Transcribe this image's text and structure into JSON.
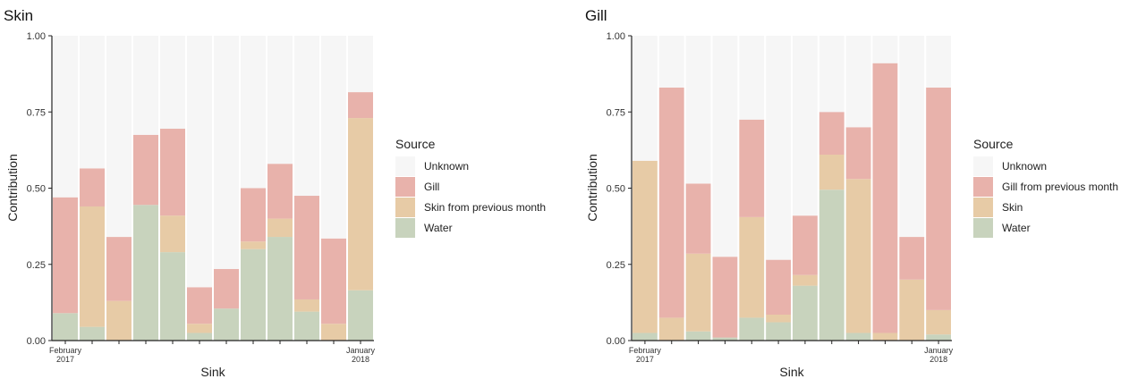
{
  "colors": {
    "unknown": "#f6f6f6",
    "gill": "#e8b2ab",
    "skin": "#e7cba6",
    "water": "#c8d3bd",
    "axis": "#222222"
  },
  "chart_data": [
    {
      "type": "bar",
      "stacked": true,
      "title": "Skin",
      "xlabel": "Sink",
      "ylabel": "Contribution",
      "ylim": [
        0,
        1
      ],
      "yticks": [
        "0.00",
        "0.25",
        "0.50",
        "0.75",
        "1.00"
      ],
      "x_tick_labels": [
        {
          "index": 0,
          "lines": [
            "February",
            "2017"
          ]
        },
        {
          "index": 11,
          "lines": [
            "January",
            "2018"
          ]
        }
      ],
      "legend": {
        "title": "Source",
        "position": "right",
        "entries": [
          {
            "label": "Unknown",
            "color_key": "unknown"
          },
          {
            "label": "Gill",
            "color_key": "gill"
          },
          {
            "label": "Skin from previous month",
            "color_key": "skin"
          },
          {
            "label": "Water",
            "color_key": "water"
          }
        ]
      },
      "series": [
        {
          "name": "Water",
          "color_key": "water",
          "values": [
            0.09,
            0.045,
            0.0,
            0.445,
            0.29,
            0.025,
            0.105,
            0.3,
            0.34,
            0.095,
            0.0,
            0.165
          ]
        },
        {
          "name": "Skin from previous month",
          "color_key": "skin",
          "values": [
            0.0,
            0.395,
            0.13,
            0.0,
            0.12,
            0.03,
            0.0,
            0.025,
            0.06,
            0.04,
            0.055,
            0.565
          ]
        },
        {
          "name": "Gill",
          "color_key": "gill",
          "values": [
            0.38,
            0.125,
            0.21,
            0.23,
            0.285,
            0.12,
            0.13,
            0.175,
            0.18,
            0.34,
            0.28,
            0.085
          ]
        },
        {
          "name": "Unknown",
          "color_key": "unknown",
          "values": [
            0.53,
            0.435,
            0.66,
            0.325,
            0.305,
            0.825,
            0.765,
            0.5,
            0.42,
            0.525,
            0.665,
            0.185
          ]
        }
      ]
    },
    {
      "type": "bar",
      "stacked": true,
      "title": "Gill",
      "xlabel": "Sink",
      "ylabel": "Contribution",
      "ylim": [
        0,
        1
      ],
      "yticks": [
        "0.00",
        "0.25",
        "0.50",
        "0.75",
        "1.00"
      ],
      "x_tick_labels": [
        {
          "index": 0,
          "lines": [
            "February",
            "2017"
          ]
        },
        {
          "index": 11,
          "lines": [
            "January",
            "2018"
          ]
        }
      ],
      "legend": {
        "title": "Source",
        "position": "right",
        "entries": [
          {
            "label": "Unknown",
            "color_key": "unknown"
          },
          {
            "label": "Gill from previous month",
            "color_key": "gill"
          },
          {
            "label": "Skin",
            "color_key": "skin"
          },
          {
            "label": "Water",
            "color_key": "water"
          }
        ]
      },
      "series": [
        {
          "name": "Water",
          "color_key": "water",
          "values": [
            0.025,
            0.0,
            0.03,
            0.01,
            0.075,
            0.06,
            0.18,
            0.495,
            0.025,
            0.0,
            0.0,
            0.02
          ]
        },
        {
          "name": "Skin",
          "color_key": "skin",
          "values": [
            0.565,
            0.075,
            0.255,
            0.0,
            0.33,
            0.025,
            0.035,
            0.115,
            0.505,
            0.025,
            0.2,
            0.08
          ]
        },
        {
          "name": "Gill from previous month",
          "color_key": "gill",
          "values": [
            0.0,
            0.755,
            0.23,
            0.265,
            0.32,
            0.18,
            0.195,
            0.14,
            0.17,
            0.885,
            0.14,
            0.73
          ]
        },
        {
          "name": "Unknown",
          "color_key": "unknown",
          "values": [
            0.41,
            0.17,
            0.485,
            0.725,
            0.275,
            0.735,
            0.59,
            0.25,
            0.3,
            0.09,
            0.66,
            0.17
          ]
        }
      ]
    }
  ]
}
